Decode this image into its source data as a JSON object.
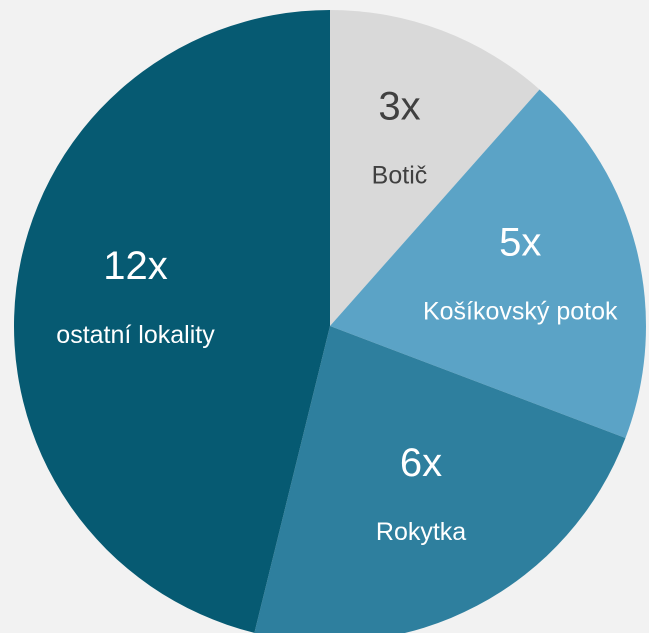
{
  "chart_data": {
    "type": "pie",
    "categories": [
      "Botič",
      "Košíkovský potok",
      "Rokytka",
      "ostatní lokality"
    ],
    "values": [
      3,
      5,
      6,
      12
    ],
    "value_labels": [
      "3x",
      "5x",
      "6x",
      "12x"
    ],
    "colors": [
      "#d9d9d9",
      "#5ba3c6",
      "#2e7f9e",
      "#065a72"
    ],
    "label_colors": [
      "#404040",
      "#ffffff",
      "#ffffff",
      "#ffffff"
    ]
  }
}
